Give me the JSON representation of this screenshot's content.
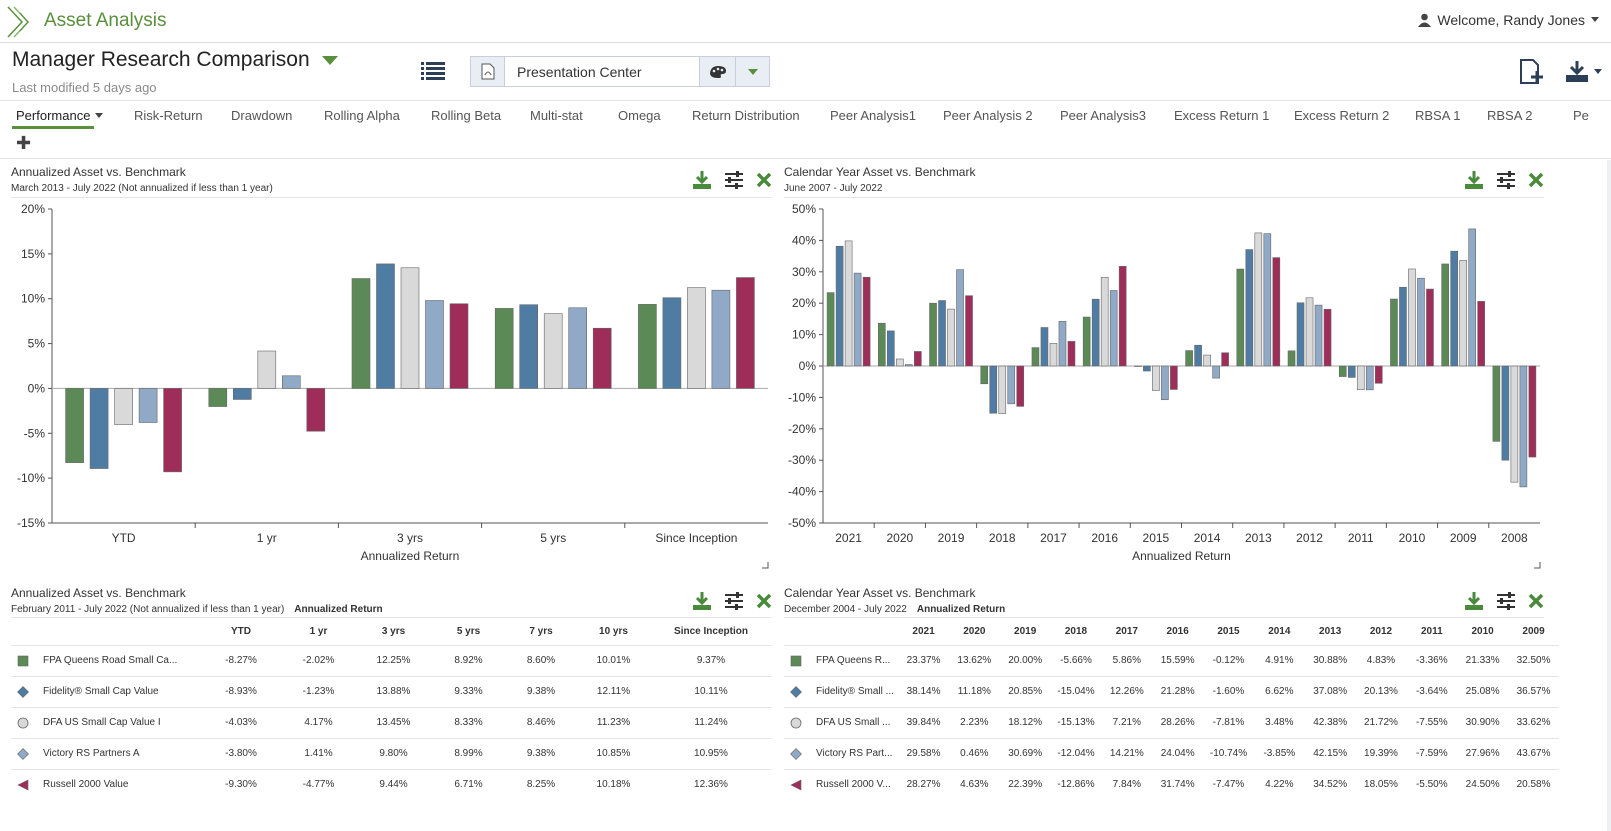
{
  "app": {
    "title": "Asset Analysis",
    "welcome": "Welcome, Randy Jones"
  },
  "header": {
    "title": "Manager Research Comparison",
    "last_modified": "Last modified 5 days ago",
    "presentation": "Presentation Center"
  },
  "colors": {
    "green": "#5c8a57",
    "blue": "#4f7ca3",
    "lightgray": "#d9d9d9",
    "lightblue": "#8fa9c6",
    "maroon": "#9e2d5a",
    "accent": "#5a8f3e"
  },
  "tabs": [
    "Performance",
    "Risk-Return",
    "Drawdown",
    "Rolling Alpha",
    "Rolling Beta",
    "Multi-stat",
    "Omega",
    "Return Distribution",
    "Peer Analysis1",
    "Peer Analysis 2",
    "Peer Analysis3",
    "Excess Return 1",
    "Excess Return 2",
    "RBSA 1",
    "RBSA 2",
    "Pe"
  ],
  "panels": {
    "tl": {
      "title": "Annualized Asset vs. Benchmark",
      "subtitle": "March 2013 - July 2022 (Not annualized if less than 1 year)"
    },
    "tr": {
      "title": "Calendar Year Asset vs. Benchmark",
      "subtitle": "June 2007 - July 2022"
    },
    "bl": {
      "title": "Annualized Asset vs. Benchmark",
      "subtitle": "February 2011 - July 2022 (Not annualized if less than 1 year)",
      "subtitle_bold": "Annualized Return"
    },
    "br": {
      "title": "Calendar Year Asset vs. Benchmark",
      "subtitle": "December 2004 - July 2022",
      "subtitle_bold": "Annualized Return"
    }
  },
  "chart_data": [
    {
      "type": "bar",
      "categories": [
        "YTD",
        "1 yr",
        "3 yrs",
        "5 yrs",
        "Since Inception"
      ],
      "xlabel": "Annualized Return",
      "ylim": [
        -15,
        20
      ],
      "yticks": [
        "20%",
        "15%",
        "10%",
        "5%",
        "0%",
        "-5%",
        "-10%",
        "-15%"
      ],
      "series": [
        {
          "color": "#5c8a57",
          "values": [
            -8.27,
            -2.02,
            12.25,
            8.92,
            9.37
          ]
        },
        {
          "color": "#4f7ca3",
          "values": [
            -8.93,
            -1.23,
            13.88,
            9.33,
            10.11
          ]
        },
        {
          "color": "#d9d9d9",
          "values": [
            -4.03,
            4.17,
            13.45,
            8.33,
            11.24
          ]
        },
        {
          "color": "#8fa9c6",
          "values": [
            -3.8,
            1.41,
            9.8,
            8.99,
            10.95
          ]
        },
        {
          "color": "#9e2d5a",
          "values": [
            -9.3,
            -4.77,
            9.44,
            6.71,
            12.36
          ]
        }
      ]
    },
    {
      "type": "bar",
      "categories": [
        "2021",
        "2020",
        "2019",
        "2018",
        "2017",
        "2016",
        "2015",
        "2014",
        "2013",
        "2012",
        "2011",
        "2010",
        "2009",
        "2008"
      ],
      "xlabel": "Annualized Return",
      "ylim": [
        -50,
        50
      ],
      "yticks": [
        "50%",
        "40%",
        "30%",
        "20%",
        "10%",
        "0%",
        "-10%",
        "-20%",
        "-30%",
        "-40%",
        "-50%"
      ],
      "series": [
        {
          "color": "#5c8a57",
          "values": [
            23.37,
            13.62,
            20.0,
            -5.66,
            5.86,
            15.59,
            -0.12,
            4.91,
            30.88,
            4.83,
            -3.36,
            21.33,
            32.5,
            -24
          ]
        },
        {
          "color": "#4f7ca3",
          "values": [
            38.14,
            11.18,
            20.85,
            -15.04,
            12.26,
            21.28,
            -1.6,
            6.62,
            37.08,
            20.13,
            -3.64,
            25.08,
            36.57,
            -30
          ]
        },
        {
          "color": "#d9d9d9",
          "values": [
            39.84,
            2.23,
            18.12,
            -15.13,
            7.21,
            28.26,
            -7.81,
            3.48,
            42.38,
            21.72,
            -7.55,
            30.9,
            33.62,
            -37
          ]
        },
        {
          "color": "#8fa9c6",
          "values": [
            29.58,
            0.46,
            30.69,
            -12.04,
            14.21,
            24.04,
            -10.74,
            -3.85,
            42.15,
            19.39,
            -7.59,
            27.96,
            43.67,
            -38.5
          ]
        },
        {
          "color": "#9e2d5a",
          "values": [
            28.27,
            4.63,
            22.39,
            -12.86,
            7.84,
            31.74,
            -7.47,
            4.22,
            34.52,
            18.05,
            -5.5,
            24.5,
            20.58,
            -29
          ]
        }
      ]
    }
  ],
  "table_annualized": {
    "columns": [
      "YTD",
      "1 yr",
      "3 yrs",
      "5 yrs",
      "7 yrs",
      "10 yrs",
      "Since Inception"
    ],
    "rows": [
      {
        "name": "FPA Queens Road Small Ca...",
        "marker": "square",
        "color": "#5c8a57",
        "values": [
          "-8.27%",
          "-2.02%",
          "12.25%",
          "8.92%",
          "8.60%",
          "10.01%",
          "9.37%"
        ]
      },
      {
        "name": "Fidelity® Small Cap Value",
        "marker": "diamond",
        "color": "#4f7ca3",
        "values": [
          "-8.93%",
          "-1.23%",
          "13.88%",
          "9.33%",
          "9.38%",
          "12.11%",
          "10.11%"
        ]
      },
      {
        "name": "DFA US Small Cap Value I",
        "marker": "circle",
        "color": "#d9d9d9",
        "values": [
          "-4.03%",
          "4.17%",
          "13.45%",
          "8.33%",
          "8.46%",
          "11.23%",
          "11.24%"
        ]
      },
      {
        "name": "Victory RS Partners A",
        "marker": "diamond",
        "color": "#8fa9c6",
        "values": [
          "-3.80%",
          "1.41%",
          "9.80%",
          "8.99%",
          "9.38%",
          "10.85%",
          "10.95%"
        ]
      },
      {
        "name": "Russell 2000 Value",
        "marker": "triangle",
        "color": "#9e2d5a",
        "values": [
          "-9.30%",
          "-4.77%",
          "9.44%",
          "6.71%",
          "8.25%",
          "10.18%",
          "12.36%"
        ]
      }
    ]
  },
  "table_calendar": {
    "columns": [
      "2021",
      "2020",
      "2019",
      "2018",
      "2017",
      "2016",
      "2015",
      "2014",
      "2013",
      "2012",
      "2011",
      "2010",
      "2009"
    ],
    "rows": [
      {
        "name": "FPA Queens R...",
        "marker": "square",
        "color": "#5c8a57",
        "values": [
          "23.37%",
          "13.62%",
          "20.00%",
          "-5.66%",
          "5.86%",
          "15.59%",
          "-0.12%",
          "4.91%",
          "30.88%",
          "4.83%",
          "-3.36%",
          "21.33%",
          "32.50%"
        ]
      },
      {
        "name": "Fidelity® Small ...",
        "marker": "diamond",
        "color": "#4f7ca3",
        "values": [
          "38.14%",
          "11.18%",
          "20.85%",
          "-15.04%",
          "12.26%",
          "21.28%",
          "-1.60%",
          "6.62%",
          "37.08%",
          "20.13%",
          "-3.64%",
          "25.08%",
          "36.57%"
        ]
      },
      {
        "name": "DFA US Small ...",
        "marker": "circle",
        "color": "#d9d9d9",
        "values": [
          "39.84%",
          "2.23%",
          "18.12%",
          "-15.13%",
          "7.21%",
          "28.26%",
          "-7.81%",
          "3.48%",
          "42.38%",
          "21.72%",
          "-7.55%",
          "30.90%",
          "33.62%"
        ]
      },
      {
        "name": "Victory RS Part...",
        "marker": "diamond",
        "color": "#8fa9c6",
        "values": [
          "29.58%",
          "0.46%",
          "30.69%",
          "-12.04%",
          "14.21%",
          "24.04%",
          "-10.74%",
          "-3.85%",
          "42.15%",
          "19.39%",
          "-7.59%",
          "27.96%",
          "43.67%"
        ]
      },
      {
        "name": "Russell 2000 V...",
        "marker": "triangle",
        "color": "#9e2d5a",
        "values": [
          "28.27%",
          "4.63%",
          "22.39%",
          "-12.86%",
          "7.84%",
          "31.74%",
          "-7.47%",
          "4.22%",
          "34.52%",
          "18.05%",
          "-5.50%",
          "24.50%",
          "20.58%"
        ]
      }
    ]
  }
}
